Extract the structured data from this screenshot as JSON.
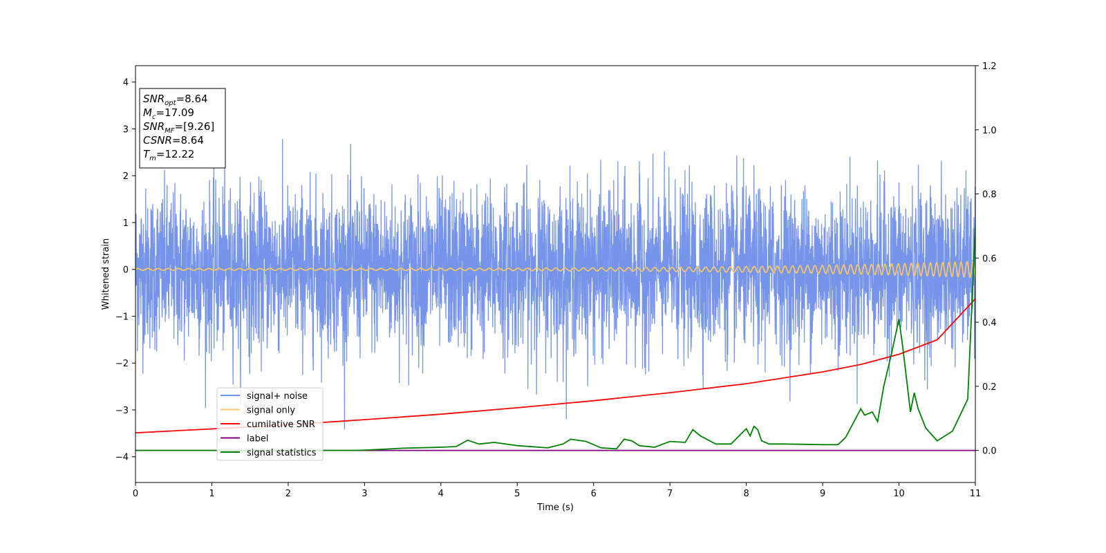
{
  "chart_data": {
    "type": "line",
    "xlabel": "Time (s)",
    "ylabel": "Whitened strain",
    "xlim": [
      0,
      11
    ],
    "ylim": [
      -4.55,
      4.35
    ],
    "y2lim": [
      -0.1,
      1.2
    ],
    "x_ticks": [
      "0",
      "1",
      "2",
      "3",
      "4",
      "5",
      "6",
      "7",
      "8",
      "9",
      "10",
      "11"
    ],
    "y_ticks": [
      "4",
      "3",
      "2",
      "1",
      "0",
      "−1",
      "−2",
      "−3",
      "−4"
    ],
    "y2_ticks": [
      "1.2",
      "1.0",
      "0.8",
      "0.6",
      "0.4",
      "0.2",
      "0.0"
    ],
    "legend_position": "lower-left",
    "grid": false,
    "annotation": {
      "lines": [
        {
          "main": "SNR",
          "sub": "opt",
          "rest": "=8.64"
        },
        {
          "main": "M",
          "sub": "c",
          "rest": "=17.09"
        },
        {
          "main": "SNR",
          "sub": "MF",
          "rest": "=[9.26]"
        },
        {
          "main": "CSNR",
          "sub": "",
          "rest": "=8.64"
        },
        {
          "main": "T",
          "sub": "m",
          "rest": "=12.22"
        }
      ]
    },
    "series": [
      {
        "name": "signal+ noise",
        "color": "#6f8ee8",
        "axis": "left",
        "description": "noise",
        "noise_std": 0.85,
        "noise_max": 4.0
      },
      {
        "name": "signal only",
        "color": "#f5c56b",
        "axis": "left",
        "description": "chirp",
        "amp_start": 0.02,
        "amp_end": 0.17
      },
      {
        "name": "cumilative SNR",
        "color": "#ff0000",
        "axis": "right",
        "x": [
          0,
          1,
          2,
          3,
          4,
          5,
          6,
          7,
          8,
          9,
          9.5,
          10,
          10.5,
          11
        ],
        "y": [
          0.055,
          0.067,
          0.08,
          0.096,
          0.113,
          0.133,
          0.155,
          0.18,
          0.208,
          0.245,
          0.268,
          0.3,
          0.345,
          0.473
        ]
      },
      {
        "name": "label",
        "color": "#800080",
        "axis": "right",
        "x": [
          0,
          11
        ],
        "y": [
          0.0,
          0.0
        ]
      },
      {
        "name": "signal statistics",
        "color": "#008000",
        "axis": "right",
        "x": [
          0,
          1,
          2,
          2.5,
          2.9,
          3.2,
          3.5,
          4,
          4.2,
          4.35,
          4.5,
          4.7,
          5,
          5.4,
          5.6,
          5.7,
          5.9,
          6.1,
          6.3,
          6.4,
          6.5,
          6.6,
          6.8,
          7,
          7.2,
          7.3,
          7.4,
          7.6,
          7.8,
          8,
          8.05,
          8.1,
          8.15,
          8.2,
          8.3,
          8.5,
          9,
          9.2,
          9.3,
          9.5,
          9.55,
          9.65,
          9.72,
          9.8,
          9.9,
          10,
          10.05,
          10.1,
          10.15,
          10.2,
          10.25,
          10.35,
          10.5,
          10.7,
          10.9,
          11
        ],
        "y": [
          0.0,
          0.0,
          0.0,
          0.0,
          0.0,
          0.003,
          0.007,
          0.01,
          0.012,
          0.032,
          0.02,
          0.025,
          0.015,
          0.008,
          0.02,
          0.035,
          0.028,
          0.008,
          0.005,
          0.035,
          0.03,
          0.015,
          0.01,
          0.028,
          0.025,
          0.065,
          0.045,
          0.02,
          0.02,
          0.068,
          0.045,
          0.075,
          0.065,
          0.03,
          0.02,
          0.02,
          0.018,
          0.018,
          0.04,
          0.13,
          0.11,
          0.12,
          0.09,
          0.2,
          0.3,
          0.41,
          0.32,
          0.22,
          0.12,
          0.18,
          0.13,
          0.07,
          0.03,
          0.06,
          0.16,
          0.7
        ]
      }
    ]
  }
}
